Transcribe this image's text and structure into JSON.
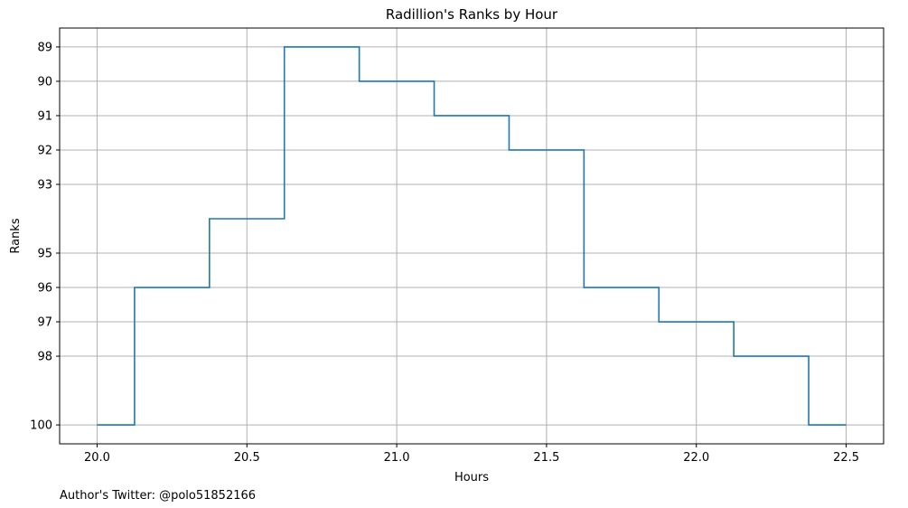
{
  "chart_data": {
    "type": "line",
    "drawstyle": "steps-mid",
    "title": "Radillion's Ranks by Hour",
    "xlabel": "Hours",
    "ylabel": "Ranks",
    "y_inverted": true,
    "grid": true,
    "xlim": [
      19.875,
      22.625
    ],
    "ylim": [
      88.45,
      100.55
    ],
    "x_ticks": [
      20.0,
      20.5,
      21.0,
      21.5,
      22.0,
      22.5
    ],
    "x_tick_labels": [
      "20.0",
      "20.5",
      "21.0",
      "21.5",
      "22.0",
      "22.5"
    ],
    "y_ticks": [
      89,
      90,
      91,
      92,
      93,
      95,
      96,
      97,
      98,
      100
    ],
    "y_tick_labels": [
      "89",
      "90",
      "91",
      "92",
      "93",
      "95",
      "96",
      "97",
      "98",
      "100"
    ],
    "series": [
      {
        "color": "#1f77b4",
        "x": [
          20.0,
          20.25,
          20.5,
          20.75,
          21.0,
          21.25,
          21.5,
          21.75,
          22.0,
          22.25,
          22.5
        ],
        "values": [
          100,
          96,
          94,
          89,
          90,
          91,
          92,
          96,
          97,
          98,
          100
        ]
      }
    ],
    "annotations": [
      "Author's Twitter: @polo51852166"
    ]
  }
}
